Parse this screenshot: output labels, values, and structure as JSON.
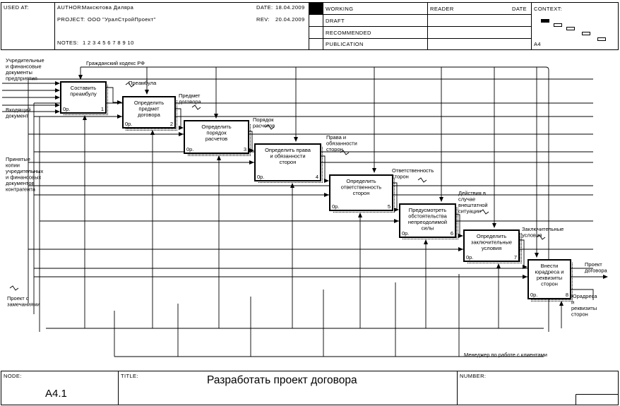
{
  "header": {
    "used_at_label": "USED AT:",
    "author_label": "AUTHOR:",
    "author": "Максютова Диляра",
    "project_label": "PROJECT:",
    "project": "ООО \"УралСтройПроект\"",
    "notes_label": "NOTES:",
    "notes": "1 2 3 4 5 6 7 8 9 10",
    "date_label": "DATE:",
    "date": "18.04.2009",
    "rev_label": "REV:",
    "rev": "20.04.2009",
    "status": [
      "WORKING",
      "DRAFT",
      "RECOMMENDED",
      "PUBLICATION"
    ],
    "reader_label": "READER",
    "reader_date_label": "DATE",
    "context_label": "CONTEXT:",
    "context_node": "A4"
  },
  "footer": {
    "node_label": "NODE:",
    "node": "A4.1",
    "title_label": "TITLE:",
    "title": "Разработать проект договора",
    "number_label": "NUMBER:"
  },
  "boxes": [
    {
      "id": "1",
      "lines": [
        "Составить",
        "преамбулу"
      ],
      "cost": "0р.",
      "num": "1"
    },
    {
      "id": "2",
      "lines": [
        "Определить",
        "предмет",
        "договора"
      ],
      "cost": "0р.",
      "num": "2"
    },
    {
      "id": "3",
      "lines": [
        "Определить",
        "порядок",
        "расчетов"
      ],
      "cost": "0р.",
      "num": "3"
    },
    {
      "id": "4",
      "lines": [
        "Определить права",
        "и обязанности",
        "сторон"
      ],
      "cost": "0р.",
      "num": "4"
    },
    {
      "id": "5",
      "lines": [
        "Определить",
        "ответственность",
        "сторон"
      ],
      "cost": "0р.",
      "num": "5"
    },
    {
      "id": "6",
      "lines": [
        "Предусмотреть",
        "обстоятельства",
        "непреодолимой",
        "силы"
      ],
      "cost": "0р.",
      "num": "6"
    },
    {
      "id": "7",
      "lines": [
        "Определить",
        "заключительные",
        "условия"
      ],
      "cost": "0р.",
      "num": "7"
    },
    {
      "id": "8",
      "lines": [
        "Внести",
        "юрадреса и",
        "реквизиты",
        "сторон"
      ],
      "cost": "0р.",
      "num": "8"
    }
  ],
  "labels": {
    "in_docs": [
      "Учредительные",
      "и финансовые",
      "документы",
      "предприятия"
    ],
    "in_incoming": [
      "Входящий",
      "документ"
    ],
    "in_copies": [
      "Принятые",
      "копии",
      "учредительных",
      "и финансовых",
      "документов",
      "контрагента"
    ],
    "in_remarks": [
      "Проект с",
      "замечаниями"
    ],
    "civil_code": "Гражданский кодекс РФ",
    "o1": "Преамбула",
    "o2": [
      "Предмет",
      "договора"
    ],
    "o3": [
      "Порядок",
      "расчетов"
    ],
    "o4": [
      "Права и",
      "обязанности",
      "сторон"
    ],
    "o5": [
      "Ответственность",
      "сторон"
    ],
    "o6": [
      "Действия в",
      "случае",
      "внештатной",
      "ситуации"
    ],
    "o7": [
      "Заключительные",
      "условия"
    ],
    "out_project": [
      "Проект",
      "договора"
    ],
    "out_addr": [
      "Юрадреса",
      "и",
      "реквизиты",
      "сторон"
    ],
    "manager": "Менеджер по работе с клиентами"
  },
  "context_icon": "context-steps-icon"
}
